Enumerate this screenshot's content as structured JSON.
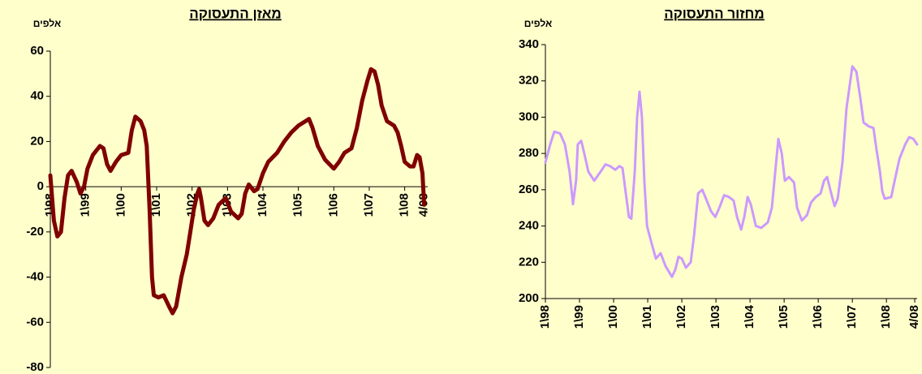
{
  "chart_data": [
    {
      "type": "line",
      "title": "מאזן התעסוקה",
      "unit": "אלפים",
      "color": "#800000",
      "xlim": [
        1998,
        2008.65
      ],
      "ylim": [
        -80,
        60
      ],
      "yticks": [
        -80,
        -60,
        -40,
        -20,
        0,
        20,
        40,
        60
      ],
      "xticks": [
        {
          "value": 1998,
          "label": "1\\98"
        },
        {
          "value": 1999,
          "label": "1\\99"
        },
        {
          "value": 2000,
          "label": "1\\00"
        },
        {
          "value": 2001,
          "label": "1\\01"
        },
        {
          "value": 2002,
          "label": "1\\02"
        },
        {
          "value": 2003,
          "label": "1\\03"
        },
        {
          "value": 2004,
          "label": "1\\04"
        },
        {
          "value": 2005,
          "label": "1\\05"
        },
        {
          "value": 2006,
          "label": "1\\06"
        },
        {
          "value": 2007,
          "label": "1\\07"
        },
        {
          "value": 2008,
          "label": "1\\08"
        },
        {
          "value": 2008.55,
          "label": "4/08"
        }
      ],
      "x": [
        1998.0,
        1998.1,
        1998.2,
        1998.3,
        1998.4,
        1998.5,
        1998.6,
        1998.75,
        1998.85,
        1998.95,
        1999.05,
        1999.2,
        1999.4,
        1999.5,
        1999.6,
        1999.7,
        1999.85,
        2000.0,
        2000.2,
        2000.3,
        2000.4,
        2000.55,
        2000.65,
        2000.72,
        2000.8,
        2000.87,
        2000.92,
        2001.05,
        2001.2,
        2001.35,
        2001.45,
        2001.55,
        2001.7,
        2001.85,
        2001.95,
        2002.05,
        2002.15,
        2002.2,
        2002.25,
        2002.35,
        2002.45,
        2002.6,
        2002.75,
        2002.95,
        2003.1,
        2003.3,
        2003.4,
        2003.5,
        2003.6,
        2003.75,
        2003.85,
        2004.0,
        2004.15,
        2004.4,
        2004.6,
        2004.8,
        2005.0,
        2005.2,
        2005.3,
        2005.4,
        2005.55,
        2005.75,
        2006.0,
        2006.15,
        2006.3,
        2006.5,
        2006.65,
        2006.8,
        2006.95,
        2007.05,
        2007.15,
        2007.25,
        2007.35,
        2007.5,
        2007.7,
        2007.8,
        2007.9,
        2008.0,
        2008.15,
        2008.25,
        2008.35,
        2008.42,
        2008.5,
        2008.55
      ],
      "values": [
        5,
        -15,
        -22,
        -20,
        -5,
        5,
        7,
        2,
        -3,
        0,
        8,
        14,
        18,
        17,
        10,
        7,
        11,
        14,
        15,
        25,
        31,
        29,
        25,
        18,
        -10,
        -40,
        -48,
        -49,
        -48,
        -53,
        -56,
        -53,
        -40,
        -30,
        -20,
        -10,
        -3,
        -1,
        -5,
        -15,
        -17,
        -14,
        -8,
        -5,
        -11,
        -14,
        -12,
        -3,
        1,
        -2,
        -1,
        6,
        11,
        15,
        20,
        24,
        27,
        29,
        30,
        26,
        18,
        12,
        8,
        11,
        15,
        17,
        26,
        38,
        47,
        52,
        51,
        45,
        36,
        29,
        27,
        24,
        18,
        11,
        9,
        9,
        14,
        13,
        6,
        -8
      ]
    },
    {
      "type": "line",
      "title": "מחזור התעסוקה",
      "unit": "אלפים",
      "color": "#cc99ff",
      "xlim": [
        1998,
        2008.9
      ],
      "ylim": [
        200,
        340
      ],
      "yticks": [
        200,
        220,
        240,
        260,
        280,
        300,
        320,
        340
      ],
      "xticks": [
        {
          "value": 1998,
          "label": "1\\98"
        },
        {
          "value": 1999,
          "label": "1\\99"
        },
        {
          "value": 2000,
          "label": "1\\00"
        },
        {
          "value": 2001,
          "label": "1\\01"
        },
        {
          "value": 2002,
          "label": "1\\02"
        },
        {
          "value": 2003,
          "label": "1\\03"
        },
        {
          "value": 2004,
          "label": "1\\04"
        },
        {
          "value": 2005,
          "label": "1\\05"
        },
        {
          "value": 2006,
          "label": "1\\06"
        },
        {
          "value": 2007,
          "label": "1\\07"
        },
        {
          "value": 2008,
          "label": "1\\08"
        },
        {
          "value": 2008.83,
          "label": "4/08"
        }
      ],
      "x": [
        1998.0,
        1998.14,
        1998.26,
        1998.43,
        1998.57,
        1998.71,
        1998.81,
        1998.9,
        1998.95,
        1999.05,
        1999.14,
        1999.26,
        1999.43,
        1999.62,
        1999.76,
        1999.9,
        2000.05,
        2000.17,
        2000.26,
        2000.33,
        2000.45,
        2000.52,
        2000.62,
        2000.69,
        2000.76,
        2000.83,
        2000.9,
        2000.98,
        2001.12,
        2001.24,
        2001.38,
        2001.52,
        2001.71,
        2001.81,
        2001.9,
        2002.0,
        2002.12,
        2002.26,
        2002.36,
        2002.48,
        2002.6,
        2002.71,
        2002.86,
        2002.98,
        2003.1,
        2003.24,
        2003.38,
        2003.52,
        2003.62,
        2003.74,
        2003.83,
        2003.93,
        2004.02,
        2004.17,
        2004.33,
        2004.52,
        2004.64,
        2004.74,
        2004.83,
        2004.93,
        2005.02,
        2005.14,
        2005.29,
        2005.38,
        2005.52,
        2005.67,
        2005.79,
        2005.93,
        2006.07,
        2006.17,
        2006.26,
        2006.38,
        2006.48,
        2006.57,
        2006.71,
        2006.83,
        2007.0,
        2007.12,
        2007.24,
        2007.33,
        2007.48,
        2007.62,
        2007.71,
        2007.81,
        2007.88,
        2007.95,
        2008.14,
        2008.24,
        2008.38,
        2008.55,
        2008.67,
        2008.79,
        2008.9
      ],
      "values": [
        275,
        285,
        292,
        291,
        285,
        270,
        252,
        265,
        285,
        287,
        280,
        270,
        265,
        270,
        274,
        273,
        271,
        273,
        272,
        262,
        245,
        244,
        270,
        300,
        314,
        300,
        265,
        240,
        230,
        222,
        225,
        218,
        212,
        216,
        223,
        222,
        217,
        220,
        235,
        258,
        260,
        255,
        248,
        245,
        250,
        257,
        256,
        254,
        245,
        238,
        245,
        256,
        252,
        240,
        239,
        242,
        250,
        270,
        288,
        280,
        265,
        267,
        264,
        250,
        243,
        246,
        253,
        256,
        258,
        265,
        267,
        258,
        251,
        255,
        275,
        305,
        328,
        325,
        310,
        297,
        295,
        294,
        282,
        270,
        259,
        255,
        256,
        265,
        277,
        285,
        289,
        288,
        285
      ]
    }
  ]
}
